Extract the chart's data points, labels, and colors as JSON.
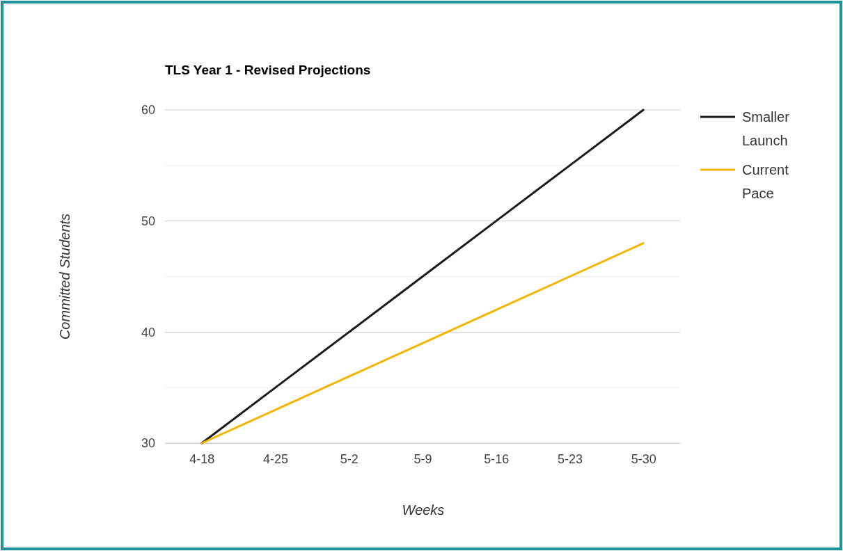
{
  "chart_data": {
    "type": "line",
    "title": "TLS Year 1 - Revised Projections",
    "xlabel": "Weeks",
    "ylabel": "Committed Students",
    "categories": [
      "4-18",
      "4-25",
      "5-2",
      "5-9",
      "5-16",
      "5-23",
      "5-30"
    ],
    "series": [
      {
        "name": "Smaller Launch",
        "color": "#1a1a1a",
        "values": [
          30,
          35,
          40,
          45,
          50,
          55,
          60
        ]
      },
      {
        "name": "Current Pace",
        "color": "#f4b400",
        "values": [
          30,
          33,
          36,
          39,
          42,
          45,
          48
        ]
      }
    ],
    "ylim": [
      30,
      60
    ],
    "yticks": [
      30,
      {
        "value": 35,
        "label": null
      },
      40,
      {
        "value": 45,
        "label": null
      },
      50,
      {
        "value": 55,
        "label": null
      },
      60
    ],
    "grid": "y",
    "legend": "right",
    "marker": "none",
    "line_style": "solid"
  }
}
